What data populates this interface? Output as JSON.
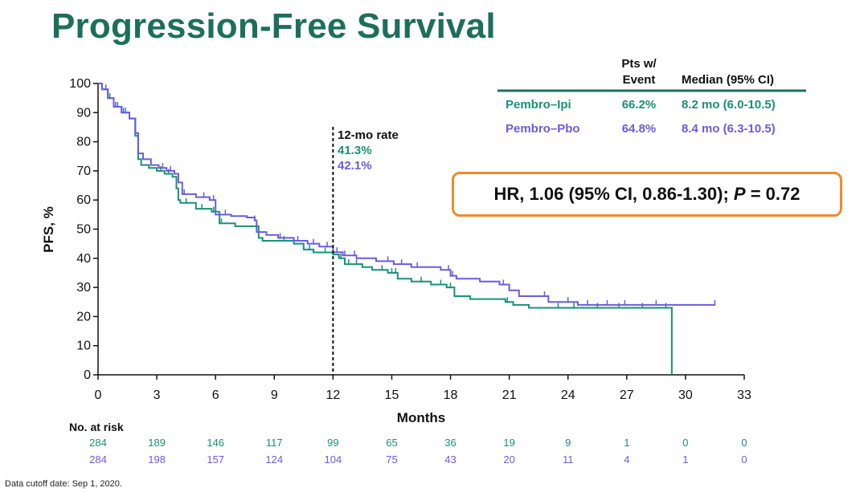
{
  "title": "Progression-Free Survival",
  "footnote": "Data cutoff date: Sep 1, 2020.",
  "colors": {
    "title": "#1d6f5b",
    "series_a": "#1a9178",
    "series_b": "#6a5ce0",
    "hr_border": "#f28a2c"
  },
  "table": {
    "col_event_line1": "Pts w/",
    "col_event_line2": "Event",
    "col_median": "Median (95% CI)",
    "rows": [
      {
        "arm": "Pembro–Ipi",
        "event": "66.2%",
        "median": "8.2 mo (6.0-10.5)"
      },
      {
        "arm": "Pembro–Pbo",
        "event": "64.8%",
        "median": "8.4 mo (6.3-10.5)"
      }
    ]
  },
  "hr": {
    "prefix": "HR, 1.06 (95% CI, 0.86-1.30); ",
    "p_label": "P",
    "p_value": " = 0.72"
  },
  "chart_data": {
    "type": "line",
    "subtype": "kaplan-meier step",
    "xlabel": "Months",
    "ylabel": "PFS, %",
    "xlim": [
      0,
      33
    ],
    "ylim": [
      0,
      100
    ],
    "xticks": [
      0,
      3,
      6,
      9,
      12,
      15,
      18,
      21,
      24,
      27,
      30,
      33
    ],
    "yticks": [
      0,
      10,
      20,
      30,
      40,
      50,
      60,
      70,
      80,
      90,
      100
    ],
    "annotation": {
      "x": 12,
      "title": "12-mo rate",
      "values": [
        "41.3%",
        "42.1%"
      ]
    },
    "series": [
      {
        "name": "Pembro–Ipi",
        "x": [
          0,
          0.2,
          0.5,
          0.8,
          1.2,
          1.6,
          1.9,
          2.05,
          2.2,
          2.6,
          3.0,
          3.4,
          3.8,
          4.0,
          4.1,
          4.2,
          5.0,
          5.8,
          6.2,
          7.0,
          8.0,
          8.2,
          8.4,
          9.0,
          10.0,
          10.5,
          11.0,
          11.5,
          12.0,
          12.3,
          12.6,
          13.5,
          14.0,
          14.8,
          15.3,
          16.0,
          17.0,
          17.8,
          18.2,
          19.0,
          20.0,
          20.5,
          20.8,
          21.2,
          22.0,
          24.0,
          26.0,
          28.0,
          29.0,
          29.25,
          29.3
        ],
        "y": [
          100,
          98,
          95,
          92,
          90,
          88,
          82,
          74,
          72,
          71,
          70,
          69,
          68,
          64,
          60,
          59,
          57,
          56,
          52,
          51,
          51,
          47,
          46,
          46,
          45,
          43,
          42,
          42,
          41.3,
          40,
          38,
          37,
          36,
          35,
          33,
          32,
          31,
          30,
          27,
          26,
          26,
          26,
          25,
          24,
          23,
          23,
          23,
          23,
          23,
          23,
          0
        ],
        "censor_x": [
          0.6,
          1.0,
          1.4,
          3.2,
          3.6,
          4.5,
          5.3,
          5.9,
          6.3,
          8.1,
          9.5,
          10.8,
          11.6,
          12.4,
          12.8,
          13.2,
          14.5,
          15.0,
          15.2,
          16.5,
          17.5,
          18.0,
          20.9,
          23.5,
          24.3,
          25.5,
          26.6,
          27.8,
          29.0
        ]
      },
      {
        "name": "Pembro–Pbo",
        "x": [
          0,
          0.2,
          0.5,
          0.8,
          1.2,
          1.6,
          1.9,
          2.05,
          2.3,
          2.7,
          3.1,
          3.5,
          3.9,
          4.1,
          4.3,
          5.0,
          5.7,
          6.0,
          6.8,
          7.6,
          8.0,
          8.1,
          8.6,
          9.2,
          10.0,
          10.7,
          11.3,
          12.0,
          12.5,
          13.2,
          14.2,
          15.1,
          16.0,
          17.5,
          18.0,
          18.3,
          19.5,
          20.5,
          21.0,
          21.5,
          23.0,
          24.5,
          28.0,
          31.5
        ],
        "y": [
          100,
          98,
          95,
          92,
          90,
          88,
          83,
          76,
          74,
          72,
          71,
          70,
          69,
          66,
          62,
          61,
          60,
          55,
          54.5,
          54,
          53,
          49,
          48,
          47,
          46,
          45,
          44,
          42.1,
          41,
          40,
          39,
          38,
          37,
          36,
          34,
          33,
          32,
          31,
          29,
          27,
          25,
          24,
          24,
          24
        ],
        "censor_x": [
          0.4,
          0.9,
          1.3,
          3.3,
          3.7,
          4.4,
          5.4,
          5.9,
          6.5,
          8.0,
          9.3,
          10.2,
          11.0,
          11.7,
          12.2,
          12.6,
          13.1,
          14.8,
          15.5,
          16.3,
          17.9,
          18.1,
          20.7,
          22.8,
          24.0,
          25.0,
          26.0,
          26.9,
          28.5,
          31.5
        ]
      }
    ],
    "risk_table": {
      "title": "No. at risk",
      "times": [
        0,
        3,
        6,
        9,
        12,
        15,
        18,
        21,
        24,
        27,
        30,
        33
      ],
      "rows": [
        {
          "name": "Pembro–Ipi",
          "values": [
            "284",
            "189",
            "146",
            "117",
            "99",
            "65",
            "36",
            "19",
            "9",
            "1",
            "0",
            "0"
          ]
        },
        {
          "name": "Pembro–Pbo",
          "values": [
            "284",
            "198",
            "157",
            "124",
            "104",
            "75",
            "43",
            "20",
            "11",
            "4",
            "1",
            "0"
          ]
        }
      ]
    }
  }
}
